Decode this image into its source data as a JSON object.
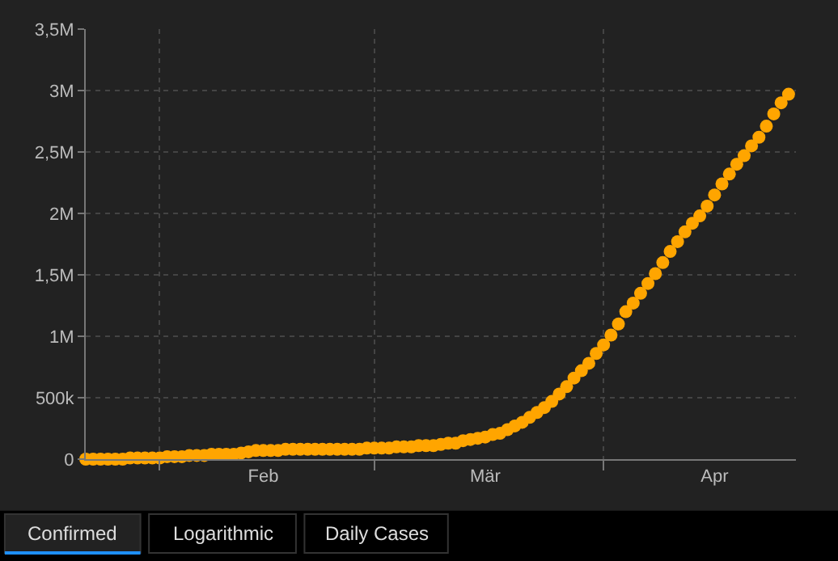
{
  "chart_data": {
    "type": "scatter",
    "x": [
      "--01-22",
      "--01-23",
      "--01-24",
      "--01-25",
      "--01-26",
      "--01-27",
      "--01-28",
      "--01-29",
      "--01-30",
      "--01-31",
      "--02-01",
      "--02-02",
      "--02-03",
      "--02-04",
      "--02-05",
      "--02-06",
      "--02-07",
      "--02-08",
      "--02-09",
      "--02-10",
      "--02-11",
      "--02-12",
      "--02-13",
      "--02-14",
      "--02-15",
      "--02-16",
      "--02-17",
      "--02-18",
      "--02-19",
      "--02-20",
      "--02-21",
      "--02-22",
      "--02-23",
      "--02-24",
      "--02-25",
      "--02-26",
      "--02-27",
      "--02-28",
      "--02-29",
      "--03-01",
      "--03-02",
      "--03-03",
      "--03-04",
      "--03-05",
      "--03-06",
      "--03-07",
      "--03-08",
      "--03-09",
      "--03-10",
      "--03-11",
      "--03-12",
      "--03-13",
      "--03-14",
      "--03-15",
      "--03-16",
      "--03-17",
      "--03-18",
      "--03-19",
      "--03-20",
      "--03-21",
      "--03-22",
      "--03-23",
      "--03-24",
      "--03-25",
      "--03-26",
      "--03-27",
      "--03-28",
      "--03-29",
      "--03-30",
      "--03-31",
      "--04-01",
      "--04-02",
      "--04-03",
      "--04-04",
      "--04-05",
      "--04-06",
      "--04-07",
      "--04-08",
      "--04-09",
      "--04-10",
      "--04-11",
      "--04-12",
      "--04-13",
      "--04-14",
      "--04-15",
      "--04-16",
      "--04-17",
      "--04-18",
      "--04-19",
      "--04-20",
      "--04-21",
      "--04-22",
      "--04-23",
      "--04-24",
      "--04-25",
      "--04-26"
    ],
    "series": [
      {
        "color": "#ffa500",
        "values": [
          0,
          0,
          0,
          0,
          0,
          0,
          10000,
          10000,
          10000,
          10000,
          10000,
          20000,
          20000,
          20000,
          30000,
          30000,
          30000,
          40000,
          40000,
          40000,
          40000,
          50000,
          60000,
          70000,
          70000,
          70000,
          70000,
          80000,
          80000,
          80000,
          80000,
          80000,
          80000,
          80000,
          80000,
          80000,
          80000,
          80000,
          90000,
          90000,
          90000,
          90000,
          100000,
          100000,
          100000,
          110000,
          110000,
          110000,
          120000,
          130000,
          130000,
          150000,
          160000,
          170000,
          180000,
          200000,
          210000,
          240000,
          270000,
          300000,
          340000,
          380000,
          420000,
          470000,
          530000,
          590000,
          660000,
          720000,
          780000,
          860000,
          930000,
          1010000,
          1100000,
          1200000,
          1270000,
          1350000,
          1430000,
          1510000,
          1600000,
          1690000,
          1770000,
          1850000,
          1920000,
          1980000,
          2060000,
          2150000,
          2240000,
          2320000,
          2400000,
          2470000,
          2550000,
          2620000,
          2710000,
          2810000,
          2900000,
          2970000
        ]
      }
    ],
    "marker": "circle",
    "xlim": [
      "--01-22",
      "--04-27"
    ],
    "xticks": [
      {
        "value": "--02-01",
        "label": null
      },
      {
        "value": "--02-15",
        "label": "Feb"
      },
      {
        "value": "--03-01",
        "label": null
      },
      {
        "value": "--03-16",
        "label": "Mär"
      },
      {
        "value": "--04-01",
        "label": null
      },
      {
        "value": "--04-16",
        "label": "Apr"
      }
    ],
    "ylim": [
      0,
      3500000
    ],
    "yticks": [
      0,
      {
        "value": 500000,
        "label": "500k"
      },
      {
        "value": 1000000,
        "label": "1M"
      },
      {
        "value": 1500000,
        "label": "1,5M"
      },
      {
        "value": 2000000,
        "label": "2M"
      },
      {
        "value": 2500000,
        "label": "2,5M"
      },
      {
        "value": 3000000,
        "label": "3M"
      },
      {
        "value": 3500000,
        "label": "3,5M"
      }
    ],
    "grid": true,
    "annotations": [
      "Confirmed",
      "Logarithmic",
      "Daily Cases"
    ]
  }
}
